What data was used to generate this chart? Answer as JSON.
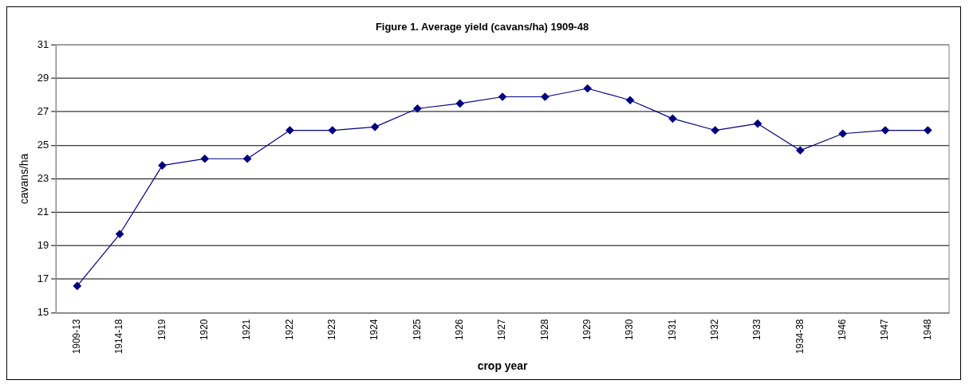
{
  "chart_data": {
    "type": "line",
    "title": "Figure 1. Average yield (cavans/ha) 1909-48",
    "xlabel": "crop year",
    "ylabel": "cavans/ha",
    "categories": [
      "1909-13",
      "1914-18",
      "1919",
      "1920",
      "1921",
      "1922",
      "1923",
      "1924",
      "1925",
      "1926",
      "1927",
      "1928",
      "1929",
      "1930",
      "1931",
      "1932",
      "1933",
      "1934-38",
      "1946",
      "1947",
      "1948"
    ],
    "series": [
      {
        "color": "#000080",
        "values": [
          16.6,
          19.7,
          23.8,
          24.2,
          24.2,
          25.9,
          25.9,
          26.1,
          27.2,
          27.5,
          27.9,
          27.9,
          28.4,
          27.7,
          26.6,
          25.9,
          26.3,
          24.7,
          25.7,
          25.9,
          25.9
        ]
      }
    ],
    "ylim": [
      15,
      31
    ],
    "yticks": [
      15,
      17,
      19,
      21,
      23,
      25,
      27,
      29,
      31
    ],
    "grid": "y",
    "legend": false,
    "marker": "diamond",
    "line_style": "solid"
  }
}
